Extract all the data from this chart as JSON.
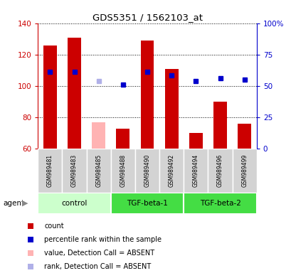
{
  "title": "GDS5351 / 1562103_at",
  "samples": [
    "GSM989481",
    "GSM989483",
    "GSM989485",
    "GSM989488",
    "GSM989490",
    "GSM989492",
    "GSM989494",
    "GSM989496",
    "GSM989499"
  ],
  "bar_values": [
    126,
    131,
    77,
    73,
    129,
    111,
    70,
    90,
    76
  ],
  "bar_colors": [
    "#cc0000",
    "#cc0000",
    "#ffb3b3",
    "#cc0000",
    "#cc0000",
    "#cc0000",
    "#cc0000",
    "#cc0000",
    "#cc0000"
  ],
  "rank_values": [
    109,
    109,
    103,
    101,
    109,
    107,
    103,
    105,
    104
  ],
  "rank_colors": [
    "#0000cc",
    "#0000cc",
    "#b0b0e8",
    "#0000cc",
    "#0000cc",
    "#0000cc",
    "#0000cc",
    "#0000cc",
    "#0000cc"
  ],
  "ylim": [
    60,
    140
  ],
  "yticks_left": [
    60,
    80,
    100,
    120,
    140
  ],
  "yticks_right": [
    0,
    25,
    50,
    75,
    100
  ],
  "groups": [
    {
      "label": "control",
      "start": 0,
      "end": 3,
      "color": "#ccffcc"
    },
    {
      "label": "TGF-beta-1",
      "start": 3,
      "end": 6,
      "color": "#44dd44"
    },
    {
      "label": "TGF-beta-2",
      "start": 6,
      "end": 9,
      "color": "#44dd44"
    }
  ],
  "agent_label": "agent",
  "left_axis_color": "#cc0000",
  "right_axis_color": "#0000cc",
  "sample_box_color": "#d3d3d3",
  "legend_items": [
    {
      "color": "#cc0000",
      "label": "count"
    },
    {
      "color": "#0000cc",
      "label": "percentile rank within the sample"
    },
    {
      "color": "#ffb3b3",
      "label": "value, Detection Call = ABSENT"
    },
    {
      "color": "#b0b0e8",
      "label": "rank, Detection Call = ABSENT"
    }
  ]
}
